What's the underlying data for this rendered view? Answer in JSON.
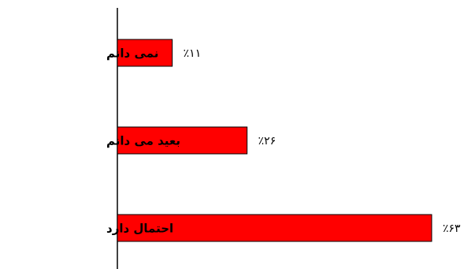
{
  "chart_data": {
    "type": "bar",
    "orientation": "horizontal",
    "categories": [
      "نمی دانم",
      "بعید می دانم",
      "احتمال دارد"
    ],
    "values": [
      11,
      26,
      63
    ],
    "value_labels": [
      "٪۱۱",
      "٪۲۶",
      "٪۶۳"
    ],
    "title": "",
    "xlabel": "",
    "ylabel": "",
    "xlim": [
      0,
      63
    ],
    "grid": false,
    "bar_color": "#ff0000",
    "bar_edge_color": "#000000"
  }
}
